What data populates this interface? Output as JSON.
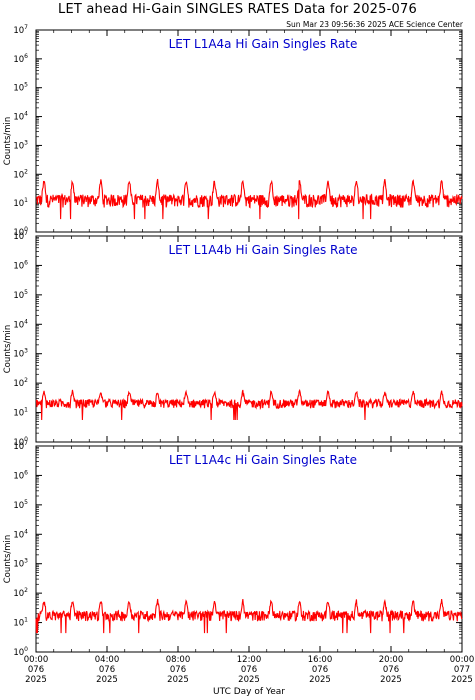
{
  "page": {
    "title": "LET ahead Hi-Gain SINGLES RATES Data for 2025-076",
    "timestamp": "Sun Mar 23 09:56:36 2025 ACE Science Center",
    "xlabel": "UTC Day of Year"
  },
  "colors": {
    "series": "#ff0000",
    "panel_title": "#0000cc",
    "axis": "#000000"
  },
  "chart_data": [
    {
      "type": "line",
      "title": "LET L1A4a Hi Gain Singles Rate",
      "ylabel": "Counts/min",
      "yscale": "log",
      "ylim": [
        1,
        10000000
      ],
      "yticks": [
        {
          "base": "10",
          "exp": "0"
        },
        {
          "base": "10",
          "exp": "1"
        },
        {
          "base": "10",
          "exp": "2"
        },
        {
          "base": "10",
          "exp": "3"
        },
        {
          "base": "10",
          "exp": "4"
        },
        {
          "base": "10",
          "exp": "5"
        },
        {
          "base": "10",
          "exp": "6"
        },
        {
          "base": "10",
          "exp": "7"
        }
      ],
      "xlim_hours": [
        0,
        24
      ],
      "series": [
        {
          "baseline": 12,
          "noise_low": 7,
          "noise_high": 20,
          "spike_peak": 70,
          "spike_period_hours": 1.6,
          "spike_offset_hours": 0.45
        }
      ]
    },
    {
      "type": "line",
      "title": "LET L1A4b Hi Gain Singles Rate",
      "ylabel": "Counts/min",
      "yscale": "log",
      "ylim": [
        1,
        10000000
      ],
      "yticks": [
        {
          "base": "10",
          "exp": "0"
        },
        {
          "base": "10",
          "exp": "1"
        },
        {
          "base": "10",
          "exp": "2"
        },
        {
          "base": "10",
          "exp": "3"
        },
        {
          "base": "10",
          "exp": "4"
        },
        {
          "base": "10",
          "exp": "5"
        },
        {
          "base": "10",
          "exp": "6"
        },
        {
          "base": "10",
          "exp": "7"
        }
      ],
      "xlim_hours": [
        0,
        24
      ],
      "series": [
        {
          "baseline": 20,
          "noise_low": 14,
          "noise_high": 28,
          "spike_peak": 60,
          "spike_period_hours": 1.6,
          "spike_offset_hours": 0.45
        }
      ]
    },
    {
      "type": "line",
      "title": "LET L1A4c Hi Gain Singles Rate",
      "ylabel": "Counts/min",
      "yscale": "log",
      "ylim": [
        1,
        10000000
      ],
      "yticks": [
        {
          "base": "10",
          "exp": "0"
        },
        {
          "base": "10",
          "exp": "1"
        },
        {
          "base": "10",
          "exp": "2"
        },
        {
          "base": "10",
          "exp": "3"
        },
        {
          "base": "10",
          "exp": "4"
        },
        {
          "base": "10",
          "exp": "5"
        },
        {
          "base": "10",
          "exp": "6"
        },
        {
          "base": "10",
          "exp": "7"
        }
      ],
      "xlim_hours": [
        0,
        24
      ],
      "series": [
        {
          "baseline": 17,
          "noise_low": 11,
          "noise_high": 25,
          "spike_peak": 65,
          "spike_period_hours": 1.6,
          "spike_offset_hours": 0.45
        }
      ]
    }
  ],
  "xticks": [
    {
      "hours": 0,
      "time": "00:00",
      "day": "076",
      "year": "2025"
    },
    {
      "hours": 4,
      "time": "04:00",
      "day": "076",
      "year": "2025"
    },
    {
      "hours": 8,
      "time": "08:00",
      "day": "076",
      "year": "2025"
    },
    {
      "hours": 12,
      "time": "12:00",
      "day": "076",
      "year": "2025"
    },
    {
      "hours": 16,
      "time": "16:00",
      "day": "076",
      "year": "2025"
    },
    {
      "hours": 20,
      "time": "20:00",
      "day": "076",
      "year": "2025"
    },
    {
      "hours": 24,
      "time": "00:00",
      "day": "077",
      "year": "2025"
    }
  ]
}
